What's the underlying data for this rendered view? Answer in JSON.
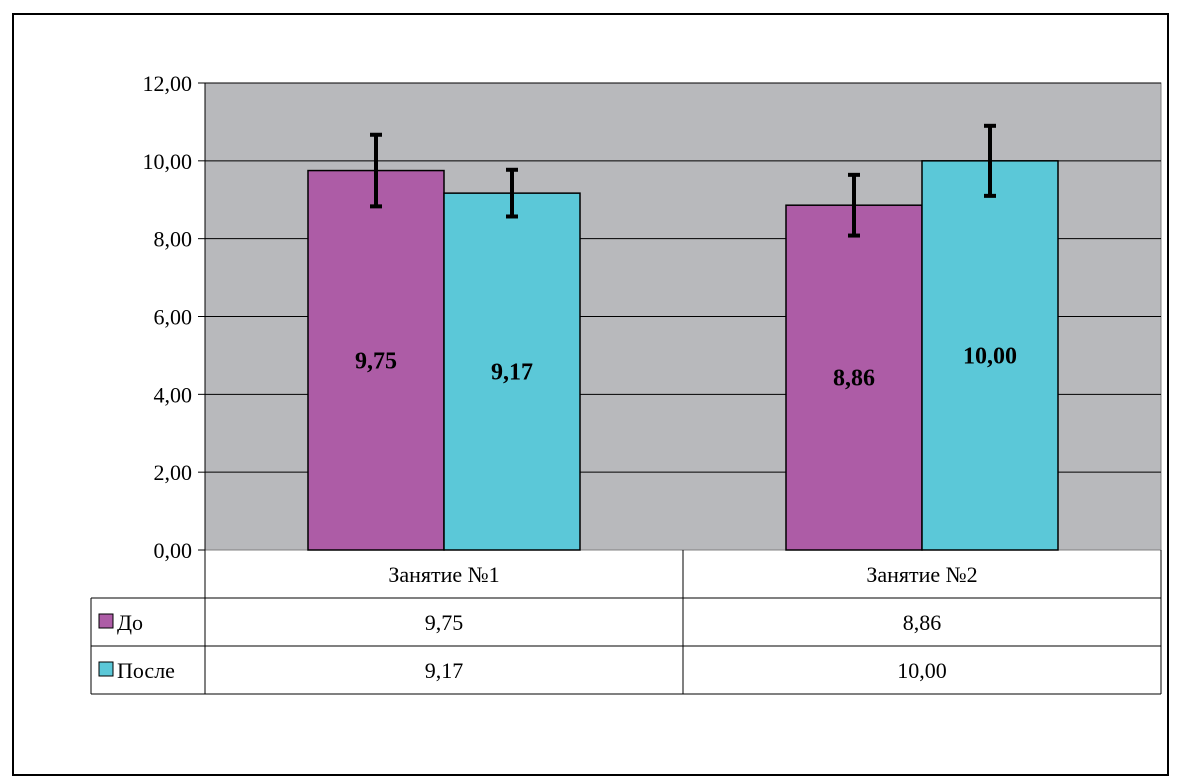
{
  "chart_data": {
    "type": "bar",
    "title": "",
    "xlabel": "",
    "ylabel": "",
    "categories": [
      "Занятие №1",
      "Занятие №2"
    ],
    "series": [
      {
        "name": "До",
        "values": [
          9.75,
          8.86
        ],
        "labels": [
          "9,75",
          "8,86"
        ],
        "error": [
          0.92,
          0.78
        ],
        "color": "#ad5ca6"
      },
      {
        "name": "После",
        "values": [
          9.17,
          10.0
        ],
        "labels": [
          "9,17",
          "10,00"
        ],
        "error": [
          0.6,
          0.9
        ],
        "color": "#5bc8d8"
      }
    ],
    "ylim": [
      0,
      12
    ],
    "yticks": [
      0,
      2,
      4,
      6,
      8,
      10,
      12
    ],
    "ytick_labels": [
      "0,00",
      "2,00",
      "4,00",
      "6,00",
      "8,00",
      "10,00",
      "12,00"
    ],
    "grid": true,
    "plot_background": "#b8b9bc",
    "data_table": true
  }
}
